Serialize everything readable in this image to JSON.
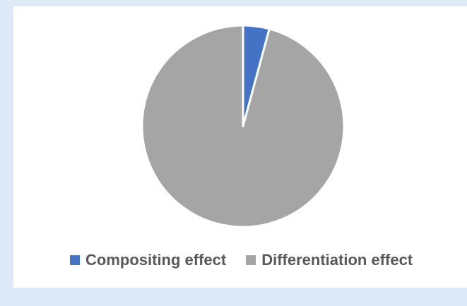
{
  "chart_data": {
    "type": "pie",
    "categories": [
      "Compositing effect",
      "Differentiation effect"
    ],
    "values": [
      4.2,
      95.8
    ],
    "colors": [
      "#4472c4",
      "#a5a5a5"
    ],
    "legend": "bottom"
  }
}
